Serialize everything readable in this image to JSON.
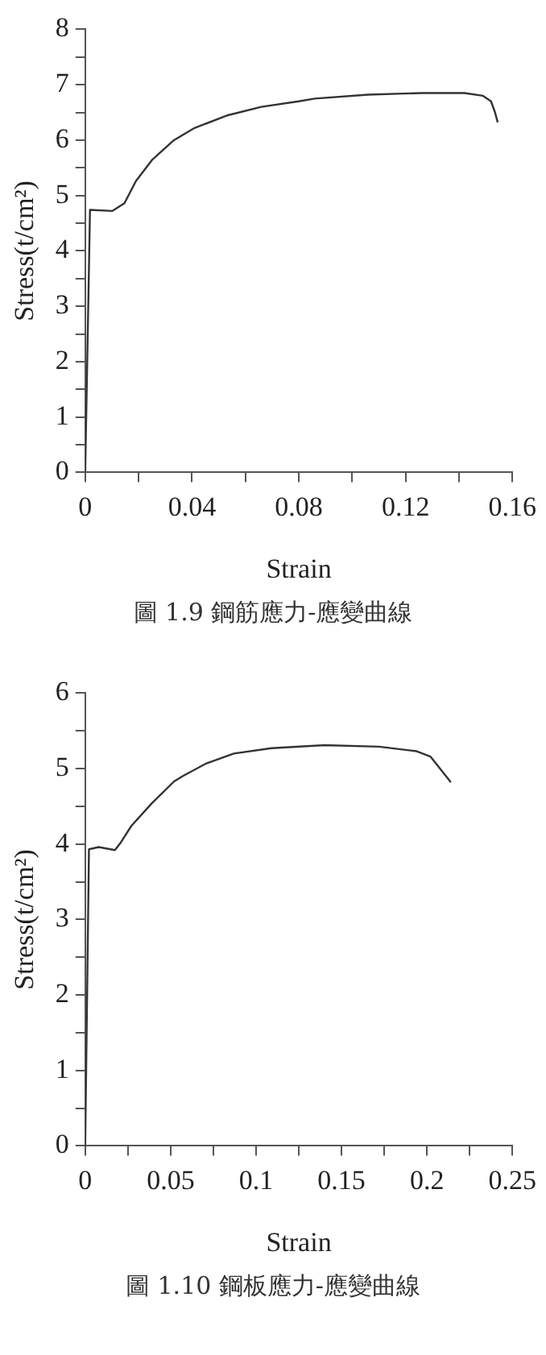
{
  "chart_data": [
    {
      "type": "line",
      "xlabel": "Strain",
      "ylabel": "Stress(t/cm²)",
      "annotations": [
        "圖 1.9 鋼筋應力-應變曲線"
      ],
      "color": "#333333",
      "grid": false,
      "legend": false,
      "marker": "none",
      "line_style": "solid",
      "x": [
        0,
        0.0018,
        0.0101,
        0.0147,
        0.019,
        0.025,
        0.033,
        0.041,
        0.0535,
        0.066,
        0.08,
        0.086,
        0.106,
        0.126,
        0.142,
        0.149,
        0.152,
        0.1535,
        0.1545
      ],
      "values": [
        0,
        4.74,
        4.72,
        4.86,
        5.26,
        5.64,
        5.99,
        6.22,
        6.45,
        6.6,
        6.7,
        6.75,
        6.82,
        6.85,
        6.85,
        6.8,
        6.7,
        6.5,
        6.32
      ],
      "xlim": [
        0,
        0.16
      ],
      "xticks": [
        0,
        {
          "value": 0.02,
          "label": null
        },
        0.04,
        {
          "value": 0.06,
          "label": null
        },
        0.08,
        {
          "value": 0.1,
          "label": null
        },
        0.12,
        {
          "value": 0.14,
          "label": null
        },
        0.16
      ],
      "ylim": [
        0,
        8
      ],
      "yticks": [
        0,
        {
          "value": 0.5,
          "label": null
        },
        1,
        {
          "value": 1.5,
          "label": null
        },
        2,
        {
          "value": 2.5,
          "label": null
        },
        3,
        {
          "value": 3.5,
          "label": null
        },
        4,
        {
          "value": 4.5,
          "label": null
        },
        5,
        {
          "value": 5.5,
          "label": null
        },
        6,
        {
          "value": 6.5,
          "label": null
        },
        7,
        {
          "value": 7.5,
          "label": null
        },
        8
      ]
    },
    {
      "type": "line",
      "xlabel": "Strain",
      "ylabel": "Stress(t/cm²)",
      "annotations": [
        "圖 1.10 鋼板應力-應變曲線"
      ],
      "color": "#333333",
      "grid": false,
      "legend": false,
      "marker": "none",
      "line_style": "solid",
      "x": [
        0,
        0.0022,
        0.0079,
        0.0174,
        0.0205,
        0.027,
        0.039,
        0.052,
        0.057,
        0.071,
        0.087,
        0.109,
        0.14,
        0.172,
        0.194,
        0.202,
        0.208,
        0.214
      ],
      "values": [
        0,
        3.93,
        3.96,
        3.92,
        4.01,
        4.24,
        4.54,
        4.83,
        4.9,
        5.07,
        5.2,
        5.27,
        5.31,
        5.29,
        5.23,
        5.16,
        4.99,
        4.82
      ],
      "xlim": [
        0,
        0.25
      ],
      "xticks": [
        0,
        {
          "value": 0.025,
          "label": null
        },
        0.05,
        {
          "value": 0.075,
          "label": null
        },
        0.1,
        {
          "value": 0.125,
          "label": null
        },
        0.15,
        {
          "value": 0.175,
          "label": null
        },
        0.2,
        {
          "value": 0.225,
          "label": null
        },
        0.25
      ],
      "ylim": [
        0,
        6
      ],
      "yticks": [
        0,
        {
          "value": 0.5,
          "label": null
        },
        1,
        {
          "value": 1.5,
          "label": null
        },
        2,
        {
          "value": 2.5,
          "label": null
        },
        3,
        {
          "value": 3.5,
          "label": null
        },
        4,
        {
          "value": 4.5,
          "label": null
        },
        5,
        {
          "value": 5.5,
          "label": null
        },
        6
      ]
    }
  ]
}
